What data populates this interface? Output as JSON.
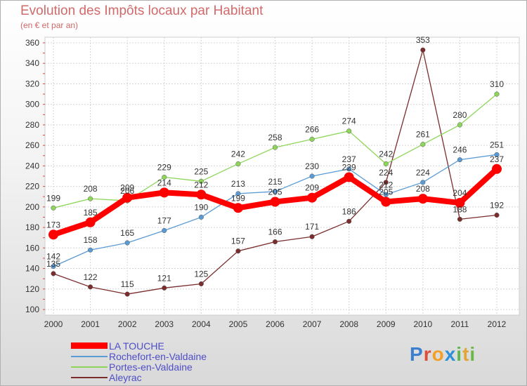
{
  "chart_data": {
    "type": "line",
    "title": "Evolution des Impôts locaux par Habitant",
    "subtitle": "(en € et par an)",
    "xlabel": "",
    "ylabel": "",
    "ylim": [
      100,
      360
    ],
    "yticks": [
      100,
      120,
      140,
      160,
      180,
      200,
      220,
      240,
      260,
      280,
      300,
      320,
      340,
      360
    ],
    "categories": [
      "2000",
      "2001",
      "2002",
      "2003",
      "2004",
      "2005",
      "2006",
      "2007",
      "2008",
      "2009",
      "2010",
      "2011",
      "2012"
    ],
    "grid": true,
    "legend_position": "bottom-left",
    "series": [
      {
        "name": "LA TOUCHE",
        "color": "#ff0000",
        "values": [
          173,
          185,
          209,
          214,
          212,
          199,
          205,
          209,
          229,
          205,
          208,
          204,
          237
        ]
      },
      {
        "name": "Rochefort-en-Valdaine",
        "color": "#5b9bd5",
        "values": [
          142,
          158,
          165,
          177,
          190,
          213,
          215,
          230,
          237,
          212,
          224,
          246,
          251
        ]
      },
      {
        "name": "Portes-en-Valdaine",
        "color": "#8ed65a",
        "values": [
          199,
          208,
          206,
          229,
          225,
          242,
          258,
          266,
          274,
          242,
          261,
          280,
          310
        ]
      },
      {
        "name": "Aleyrac",
        "color": "#7b2d2d",
        "values": [
          135,
          122,
          115,
          121,
          125,
          157,
          166,
          171,
          186,
          224,
          353,
          188,
          192
        ]
      }
    ]
  },
  "logo": {
    "letters": [
      "P",
      "r",
      "o",
      "x",
      "i",
      "t",
      "i"
    ],
    "colors": [
      "#3a7fd0",
      "#e04c3a",
      "#f2a02a",
      "#2d8fd8",
      "#5ab94a",
      "#e0a63a",
      "#6ab84a"
    ]
  }
}
